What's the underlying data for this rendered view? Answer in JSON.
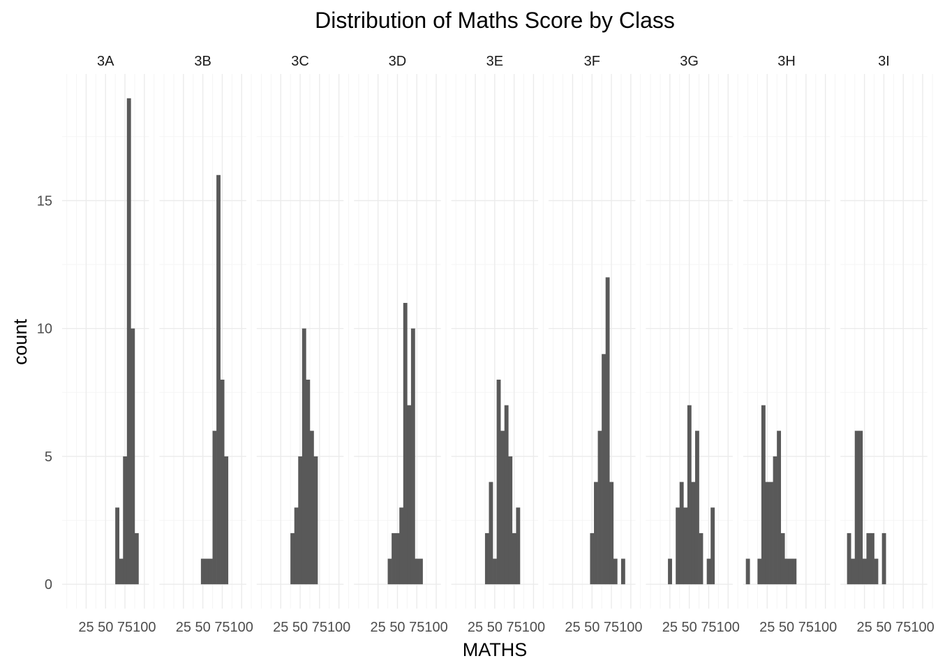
{
  "chart_data": {
    "type": "bar",
    "title": "Distribution of Maths Score by Class",
    "xlabel": "MATHS",
    "ylabel": "count",
    "x_ticks": [
      25,
      50,
      75,
      100
    ],
    "y_ticks": [
      0,
      5,
      10,
      15
    ],
    "xlim": [
      -6,
      106
    ],
    "ylim": [
      -0.95,
      19.95
    ],
    "grid": true,
    "bin_width": 5,
    "panels": [
      {
        "name": "3A",
        "bins": [
          {
            "x": 65,
            "count": 3
          },
          {
            "x": 70,
            "count": 1
          },
          {
            "x": 75,
            "count": 5
          },
          {
            "x": 80,
            "count": 19
          },
          {
            "x": 85,
            "count": 10
          },
          {
            "x": 90,
            "count": 2
          }
        ]
      },
      {
        "name": "3B",
        "bins": [
          {
            "x": 50,
            "count": 1
          },
          {
            "x": 55,
            "count": 1
          },
          {
            "x": 60,
            "count": 1
          },
          {
            "x": 65,
            "count": 6
          },
          {
            "x": 70,
            "count": 16
          },
          {
            "x": 75,
            "count": 8
          },
          {
            "x": 80,
            "count": 5
          }
        ]
      },
      {
        "name": "3C",
        "bins": [
          {
            "x": 40,
            "count": 2
          },
          {
            "x": 45,
            "count": 3
          },
          {
            "x": 50,
            "count": 5
          },
          {
            "x": 55,
            "count": 10
          },
          {
            "x": 60,
            "count": 8
          },
          {
            "x": 65,
            "count": 6
          },
          {
            "x": 70,
            "count": 5
          }
        ]
      },
      {
        "name": "3D",
        "bins": [
          {
            "x": 40,
            "count": 1
          },
          {
            "x": 45,
            "count": 2
          },
          {
            "x": 50,
            "count": 2
          },
          {
            "x": 55,
            "count": 3
          },
          {
            "x": 60,
            "count": 11
          },
          {
            "x": 65,
            "count": 7
          },
          {
            "x": 70,
            "count": 10
          },
          {
            "x": 75,
            "count": 1
          },
          {
            "x": 80,
            "count": 1
          }
        ]
      },
      {
        "name": "3E",
        "bins": [
          {
            "x": 40,
            "count": 2
          },
          {
            "x": 45,
            "count": 4
          },
          {
            "x": 50,
            "count": 1
          },
          {
            "x": 55,
            "count": 8
          },
          {
            "x": 60,
            "count": 6
          },
          {
            "x": 65,
            "count": 7
          },
          {
            "x": 70,
            "count": 5
          },
          {
            "x": 75,
            "count": 2
          },
          {
            "x": 80,
            "count": 3
          }
        ]
      },
      {
        "name": "3F",
        "bins": [
          {
            "x": 50,
            "count": 2
          },
          {
            "x": 55,
            "count": 4
          },
          {
            "x": 60,
            "count": 6
          },
          {
            "x": 65,
            "count": 9
          },
          {
            "x": 70,
            "count": 12
          },
          {
            "x": 75,
            "count": 4
          },
          {
            "x": 80,
            "count": 1
          },
          {
            "x": 90,
            "count": 1
          }
        ]
      },
      {
        "name": "3G",
        "bins": [
          {
            "x": 25,
            "count": 1
          },
          {
            "x": 35,
            "count": 3
          },
          {
            "x": 40,
            "count": 4
          },
          {
            "x": 45,
            "count": 3
          },
          {
            "x": 50,
            "count": 7
          },
          {
            "x": 55,
            "count": 4
          },
          {
            "x": 60,
            "count": 6
          },
          {
            "x": 65,
            "count": 2
          },
          {
            "x": 75,
            "count": 1
          },
          {
            "x": 80,
            "count": 3
          }
        ]
      },
      {
        "name": "3H",
        "bins": [
          {
            "x": 0,
            "count": 1
          },
          {
            "x": 15,
            "count": 1
          },
          {
            "x": 20,
            "count": 7
          },
          {
            "x": 25,
            "count": 4
          },
          {
            "x": 30,
            "count": 4
          },
          {
            "x": 35,
            "count": 5
          },
          {
            "x": 40,
            "count": 6
          },
          {
            "x": 45,
            "count": 2
          },
          {
            "x": 50,
            "count": 1
          },
          {
            "x": 55,
            "count": 1
          },
          {
            "x": 60,
            "count": 1
          }
        ]
      },
      {
        "name": "3I",
        "bins": [
          {
            "x": 5,
            "count": 2
          },
          {
            "x": 10,
            "count": 1
          },
          {
            "x": 15,
            "count": 6
          },
          {
            "x": 20,
            "count": 6
          },
          {
            "x": 25,
            "count": 1
          },
          {
            "x": 30,
            "count": 2
          },
          {
            "x": 35,
            "count": 2
          },
          {
            "x": 40,
            "count": 1
          },
          {
            "x": 50,
            "count": 2
          }
        ]
      }
    ],
    "colors": {
      "bar": "#595959",
      "grid_major": "#ebebeb",
      "grid_minor": "#f5f5f5"
    }
  }
}
